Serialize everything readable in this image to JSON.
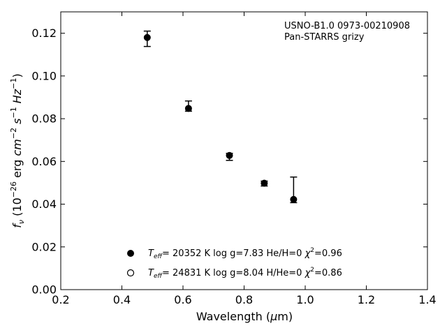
{
  "chart_data": {
    "type": "scatter",
    "annotation_lines": [
      "USNO-B1.0 0973-00210908",
      "Pan-STARRS grizy"
    ],
    "xlabel": {
      "main": "Wavelength (",
      "mu": "μ",
      "unit": "m)"
    },
    "ylabel": {
      "f": "f",
      "f_sub": "ν",
      "open": " (10",
      "exp1": "−26",
      "mid": " erg ",
      "cm": "cm",
      "exp2": "−2",
      "s": " s",
      "exp3": "−1",
      "hz": " Hz",
      "exp4": "−1",
      "close": ")"
    },
    "xlim": [
      0.2,
      1.4
    ],
    "ylim": [
      0.0,
      0.13
    ],
    "xticks": [
      0.2,
      0.4,
      0.6,
      0.8,
      1.0,
      1.2,
      1.4
    ],
    "xtick_labels": [
      "0.2",
      "0.4",
      "0.6",
      "0.8",
      "1.0",
      "1.2",
      "1.4"
    ],
    "yticks": [
      0.0,
      0.02,
      0.04,
      0.06,
      0.08,
      0.1,
      0.12
    ],
    "ytick_labels": [
      "0.00",
      "0.02",
      "0.04",
      "0.06",
      "0.08",
      "0.10",
      "0.12"
    ],
    "grid": false,
    "legend_placement": "bottom-center",
    "points": [
      {
        "x": 0.483,
        "y": 0.118,
        "yerr_low": 0.1138,
        "yerr_high": 0.121
      },
      {
        "x": 0.618,
        "y": 0.0848,
        "yerr_low": 0.0835,
        "yerr_high": 0.0883
      },
      {
        "x": 0.752,
        "y": 0.0628,
        "yerr_low": 0.0605,
        "yerr_high": 0.0638
      },
      {
        "x": 0.866,
        "y": 0.0498,
        "yerr_low": 0.0485,
        "yerr_high": 0.0508
      },
      {
        "x": 0.962,
        "y": 0.0422,
        "yerr_low": 0.0407,
        "yerr_high": 0.0527
      }
    ],
    "legend": [
      {
        "marker": "filled",
        "teff_base": "T",
        "teff_sub": "eff",
        "text": "= 20352 K  log g=7.83  He/H=0  ",
        "chi": "χ",
        "chi_sup": "2",
        "chi_val": "=0.96"
      },
      {
        "marker": "open",
        "teff_base": "T",
        "teff_sub": "eff",
        "text": "= 24831 K  log g=8.04  H/He=0  ",
        "chi": "χ",
        "chi_sup": "2",
        "chi_val": "=0.86"
      }
    ],
    "colors": {
      "marker": "#000000",
      "axis": "#000000",
      "background": "#ffffff"
    }
  }
}
